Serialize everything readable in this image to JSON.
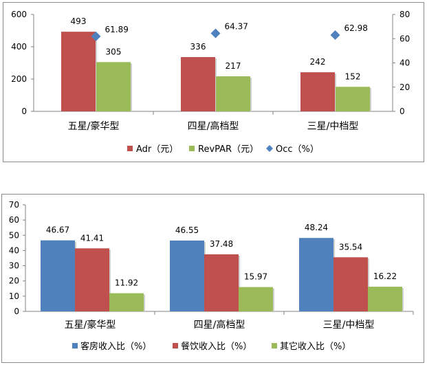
{
  "colors": {
    "red": "#c0504d",
    "green": "#9bbb59",
    "blue": "#4f81bd",
    "diamond": "#4f81bd",
    "axis": "#808080"
  },
  "chart_data": [
    {
      "type": "bar",
      "categories": [
        "五星/豪华型",
        "四星/高档型",
        "三星/中档型"
      ],
      "series": [
        {
          "name": "Adr（元）",
          "values": [
            493,
            336,
            242
          ],
          "axis": "left",
          "color": "#c0504d"
        },
        {
          "name": "RevPAR（元）",
          "values": [
            305,
            217,
            152
          ],
          "axis": "left",
          "color": "#9bbb59"
        },
        {
          "name": "Occ（%）",
          "values": [
            61.89,
            64.37,
            62.98
          ],
          "axis": "right",
          "marker": "diamond",
          "color": "#4f81bd"
        }
      ],
      "y_left": {
        "ylim": [
          0,
          600
        ],
        "ticks": [
          "0",
          "200",
          "400",
          "600"
        ]
      },
      "y_right": {
        "ylim": [
          0,
          80
        ],
        "ticks": [
          "0",
          "20",
          "40",
          "60",
          "80"
        ]
      },
      "data_labels": [
        [
          "493",
          "336",
          "242"
        ],
        [
          "305",
          "217",
          "152"
        ],
        [
          "61.89",
          "64.37",
          "62.98"
        ]
      ],
      "legend": "bottom",
      "grid": false
    },
    {
      "type": "bar",
      "categories": [
        "五星/豪华型",
        "四星/高档型",
        "三星/中档型"
      ],
      "series": [
        {
          "name": "客房收入比（%）",
          "values": [
            46.67,
            46.55,
            48.24
          ],
          "color": "#4f81bd"
        },
        {
          "name": "餐饮收入比（%）",
          "values": [
            41.41,
            37.48,
            35.54
          ],
          "color": "#c0504d"
        },
        {
          "name": "其它收入比（%）",
          "values": [
            11.92,
            15.97,
            16.22
          ],
          "color": "#9bbb59"
        }
      ],
      "y_left": {
        "ylim": [
          0,
          70
        ],
        "ticks": [
          "0",
          "10",
          "20",
          "30",
          "40",
          "50",
          "60",
          "70"
        ]
      },
      "data_labels": [
        [
          "46.67",
          "46.55",
          "48.24"
        ],
        [
          "41.41",
          "37.48",
          "35.54"
        ],
        [
          "11.92",
          "15.97",
          "16.22"
        ]
      ],
      "legend": "bottom",
      "grid": false
    }
  ]
}
